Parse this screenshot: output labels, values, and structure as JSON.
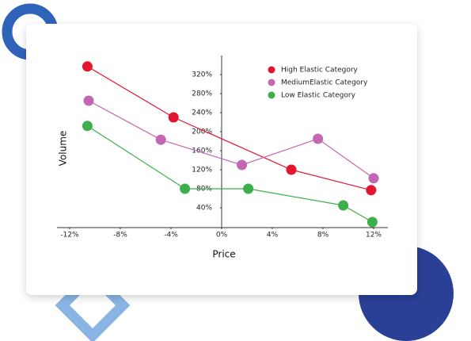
{
  "chart_data": {
    "type": "line",
    "x_label": "Price",
    "y_label": "Volume",
    "xlim": [
      -13,
      13
    ],
    "ylim": [
      0,
      360
    ],
    "xticks": [
      {
        "value": -12,
        "label": "-12%"
      },
      {
        "value": -8,
        "label": "-8%"
      },
      {
        "value": -4,
        "label": "-4%"
      },
      {
        "value": 0,
        "label": "0%"
      },
      {
        "value": 4,
        "label": "4%"
      },
      {
        "value": 8,
        "label": "8%"
      },
      {
        "value": 12,
        "label": "12%"
      }
    ],
    "yticks": [
      {
        "value": 40,
        "label": "40%"
      },
      {
        "value": 80,
        "label": "80%"
      },
      {
        "value": 120,
        "label": "120%"
      },
      {
        "value": 160,
        "label": "160%"
      },
      {
        "value": 200,
        "label": "200%"
      },
      {
        "value": 240,
        "label": "240%"
      },
      {
        "value": 280,
        "label": "280%"
      },
      {
        "value": 320,
        "label": "320%"
      }
    ],
    "grid": false,
    "legend": "upper right",
    "series": [
      {
        "name": "High Elastic Category",
        "color": "#e3162f",
        "x": [
          -10.6,
          -3.8,
          5.5,
          11.8
        ],
        "values": [
          337,
          230,
          120,
          77
        ]
      },
      {
        "name": "MediumElastic Category",
        "color": "#c366b4",
        "x": [
          -10.5,
          -4.8,
          1.6,
          7.6,
          12
        ],
        "values": [
          265,
          183,
          130,
          185,
          102
        ]
      },
      {
        "name": "Low Elastic Category",
        "color": "#3db04b",
        "x": [
          -10.6,
          -2.9,
          2.1,
          9.6,
          11.9
        ],
        "values": [
          212,
          80,
          80,
          45,
          10
        ]
      }
    ]
  }
}
